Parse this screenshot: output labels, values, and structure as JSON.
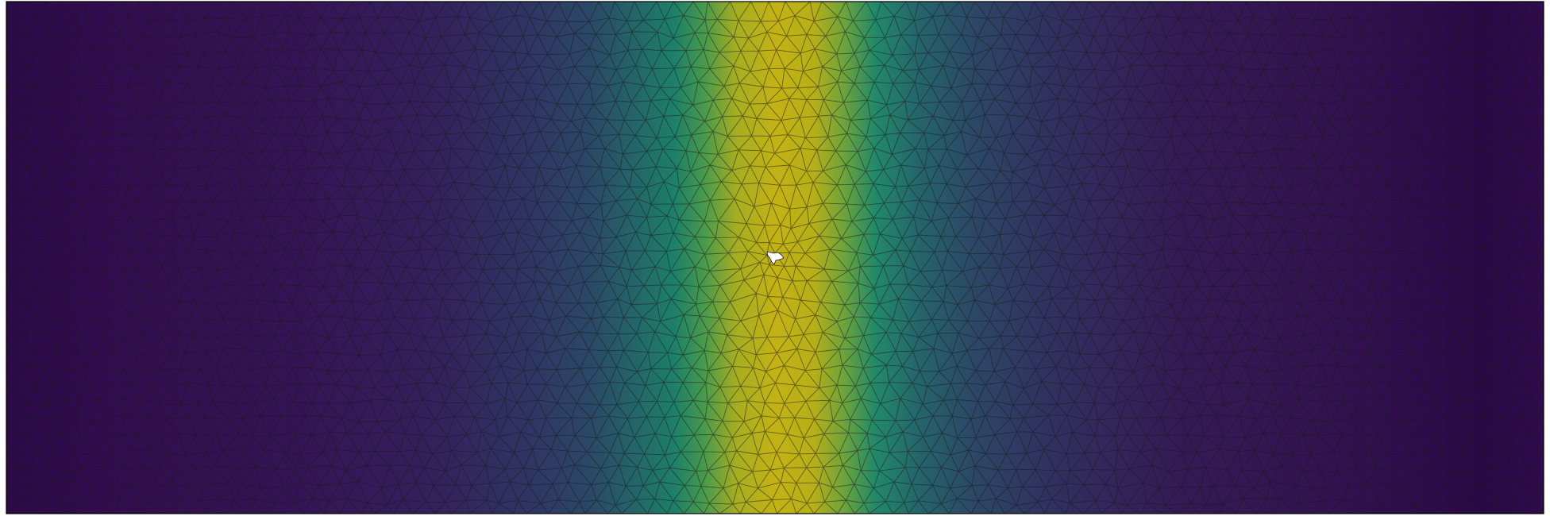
{
  "figure": {
    "kind": "triangulated-mesh-field",
    "colormap": "viridis",
    "background": "#ffffff",
    "frame_color": "#000000",
    "mesh_line_color": "#1a1a1a",
    "hole_color": "#ffffff",
    "colormap_stops": [
      "#440154",
      "#3b528b",
      "#21918c",
      "#5ec962",
      "#bfb316"
    ]
  }
}
